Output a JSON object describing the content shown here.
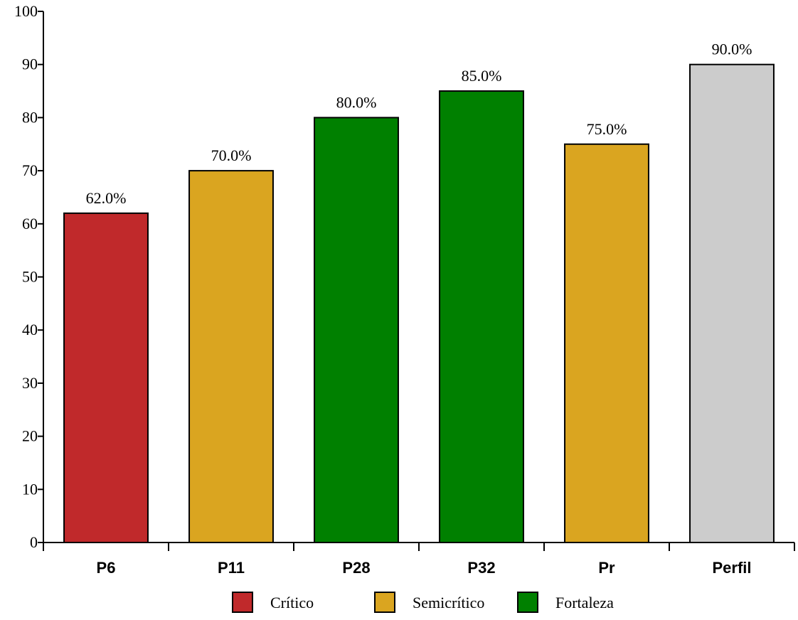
{
  "chart_data": {
    "type": "bar",
    "title": "",
    "xlabel": "",
    "ylabel": "",
    "ylim": [
      0,
      100
    ],
    "yticks": [
      0,
      10,
      20,
      30,
      40,
      50,
      60,
      70,
      80,
      90,
      100
    ],
    "categories": [
      "P6",
      "P11",
      "P28",
      "P32",
      "Pr",
      "Perfil"
    ],
    "values": [
      62,
      70,
      80,
      85,
      75,
      90
    ],
    "data_labels": [
      "62.0%",
      "70.0%",
      "80.0%",
      "85.0%",
      "75.0%",
      "90.0%"
    ],
    "bar_colors": [
      "#c0292b",
      "#daa520",
      "#008000",
      "#008000",
      "#daa520",
      "#cccccc"
    ],
    "grid": false,
    "legend": {
      "placement": "bottom-center",
      "entries": [
        {
          "label": "Crítico",
          "color": "#c0292b"
        },
        {
          "label": "Semicrítico",
          "color": "#daa520"
        },
        {
          "label": "Fortaleza",
          "color": "#008000"
        }
      ]
    }
  }
}
